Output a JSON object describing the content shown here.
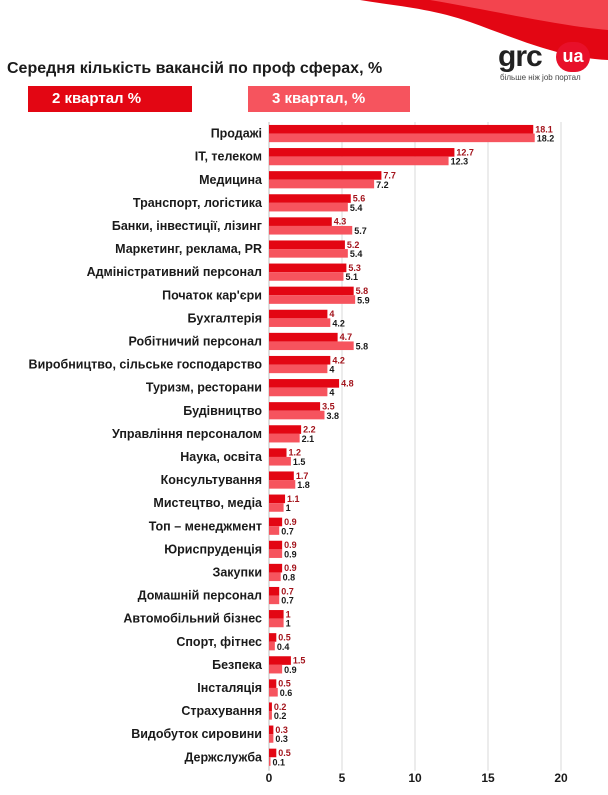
{
  "header": {
    "title": "Середня кількість вакансій по проф сферах, %"
  },
  "logo": {
    "name": "grc",
    "badge": "ua",
    "tagline": "більше ніж job портал"
  },
  "legend": {
    "q2": "2 квартал %",
    "q3": "3 квартал, %"
  },
  "colors": {
    "q2": "#e30613",
    "q3": "#f6545e",
    "q2_label": "#a3141c",
    "q3_label": "#1a1a1a",
    "grid": "#d9d9d9"
  },
  "chart_data": {
    "type": "bar",
    "orientation": "horizontal",
    "title": "Середня кількість вакансій по проф сферах, %",
    "xlim": [
      0,
      20
    ],
    "xticks": [
      0,
      5,
      10,
      15,
      20
    ],
    "grid": true,
    "legend_position": "top",
    "categories": [
      "Продажі",
      "IT, телеком",
      "Медицина",
      "Транспорт, логістика",
      "Банки, інвестиції, лізинг",
      "Маркетинг, реклама, PR",
      "Адміністративний персонал",
      "Початок кар'єри",
      "Бухгалтерія",
      "Робітничий персонал",
      "Виробництво, сільське господарство",
      "Туризм, ресторани",
      "Будівництво",
      "Управління персоналом",
      "Наука, освіта",
      "Консультування",
      "Мистецтво, медіа",
      "Топ – менеджмент",
      "Юриспруденція",
      "Закупки",
      "Домашній персонал",
      "Автомобільний бізнес",
      "Спорт, фітнес",
      "Безпека",
      "Інсталяція",
      "Страхування",
      "Видобуток сировини",
      "Держслужба"
    ],
    "series": [
      {
        "name": "2 квартал %",
        "values": [
          18.1,
          12.7,
          7.7,
          5.6,
          4.3,
          5.2,
          5.3,
          5.8,
          4,
          4.7,
          4.2,
          4.8,
          3.5,
          2.2,
          1.2,
          1.7,
          1.1,
          0.9,
          0.9,
          0.9,
          0.7,
          1,
          0.5,
          1.5,
          0.5,
          0.2,
          0.3,
          0.5
        ]
      },
      {
        "name": "3 квартал, %",
        "values": [
          18.2,
          12.3,
          7.2,
          5.4,
          5.7,
          5.4,
          5.1,
          5.9,
          4.2,
          5.8,
          4,
          4,
          3.8,
          2.1,
          1.5,
          1.8,
          1,
          0.7,
          0.9,
          0.8,
          0.7,
          1,
          0.4,
          0.9,
          0.6,
          0.2,
          0.3,
          0.1
        ]
      }
    ]
  }
}
